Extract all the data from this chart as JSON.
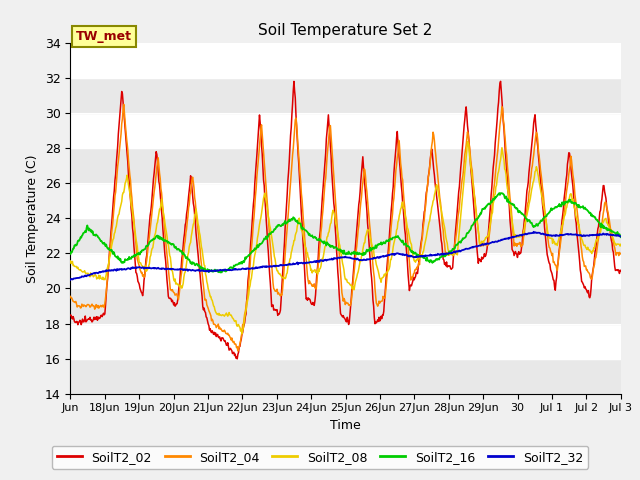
{
  "title": "Soil Temperature Set 2",
  "ylabel": "Soil Temperature (C)",
  "xlabel": "Time",
  "ylim": [
    14,
    34
  ],
  "xlim": [
    0,
    16
  ],
  "fig_facecolor": "#f0f0f0",
  "plot_bg": "#f0f0f0",
  "stripe_color_dark": "#e0e0e0",
  "stripe_color_light": "#f8f8f8",
  "annotation_text": "TW_met",
  "annotation_color": "#990000",
  "annotation_bg": "#ffff99",
  "annotation_border": "#888800",
  "series": [
    {
      "label": "SoilT2_02",
      "color": "#dd0000",
      "lw": 1.1
    },
    {
      "label": "SoilT2_04",
      "color": "#ff8800",
      "lw": 1.1
    },
    {
      "label": "SoilT2_08",
      "color": "#eecc00",
      "lw": 1.1
    },
    {
      "label": "SoilT2_16",
      "color": "#00cc00",
      "lw": 1.3
    },
    {
      "label": "SoilT2_32",
      "color": "#0000cc",
      "lw": 1.3
    }
  ],
  "xtick_positions": [
    0,
    1,
    2,
    3,
    4,
    5,
    6,
    7,
    8,
    9,
    10,
    11,
    12,
    13,
    14,
    15,
    16
  ],
  "xtick_labels": [
    "Jun",
    "18Jun",
    "19Jun",
    "20Jun",
    "21Jun",
    "22Jun",
    "23Jun",
    "24Jun",
    "25Jun",
    "26Jun",
    "27Jun",
    "28Jun",
    "29Jun",
    "30",
    "Jul 1",
    "Jul 2",
    "Jul 3"
  ],
  "ytick_positions": [
    14,
    16,
    18,
    20,
    22,
    24,
    26,
    28,
    30,
    32,
    34
  ],
  "ytick_labels": [
    "14",
    "16",
    "18",
    "20",
    "22",
    "24",
    "26",
    "28",
    "30",
    "32",
    "34"
  ]
}
